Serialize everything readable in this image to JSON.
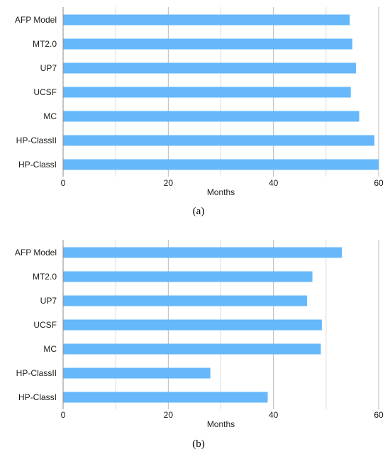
{
  "chart_data": [
    {
      "type": "bar",
      "orientation": "horizontal",
      "caption": "(a)",
      "categories": [
        "AFP Model",
        "MT2.0",
        "UP7",
        "UCSF",
        "MC",
        "HP-ClassII",
        "HP-ClassI"
      ],
      "values": [
        54.5,
        55,
        55.7,
        54.7,
        56.3,
        59.2,
        60
      ],
      "xlabel": "Months",
      "xlim": [
        0,
        60
      ],
      "xticks": [
        0,
        20,
        40,
        60
      ],
      "grid": true,
      "bar_color": "#66b8fa"
    },
    {
      "type": "bar",
      "orientation": "horizontal",
      "caption": "(b)",
      "categories": [
        "AFP Model",
        "MT2.0",
        "UP7",
        "UCSF",
        "MC",
        "HP-ClassII",
        "HP-ClassI"
      ],
      "values": [
        53,
        47.4,
        46.4,
        49.2,
        49,
        28,
        38.9
      ],
      "xlabel": "Months",
      "xlim": [
        0,
        60
      ],
      "xticks": [
        0,
        20,
        40,
        60
      ],
      "grid": true,
      "bar_color": "#66b8fa"
    }
  ]
}
